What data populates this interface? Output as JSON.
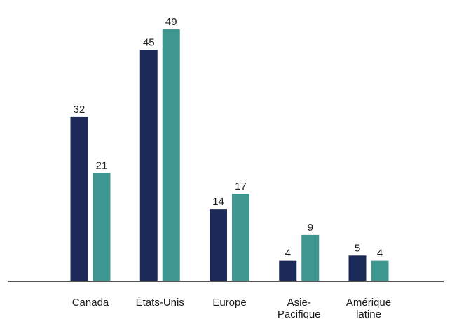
{
  "chart_data": {
    "type": "bar",
    "categories": [
      [
        "Canada"
      ],
      [
        "États-Unis"
      ],
      [
        "Europe"
      ],
      [
        "Asie-",
        "Pacifique"
      ],
      [
        "Amérique",
        "latine"
      ]
    ],
    "series": [
      {
        "values": [
          32,
          45,
          14,
          4,
          5
        ],
        "color": "#1c2a5a"
      },
      {
        "values": [
          21,
          49,
          17,
          9,
          4
        ],
        "color": "#3d9690"
      }
    ],
    "ylim": [
      0,
      52
    ],
    "grid": false,
    "baseline_color": "#1a1a1a"
  }
}
